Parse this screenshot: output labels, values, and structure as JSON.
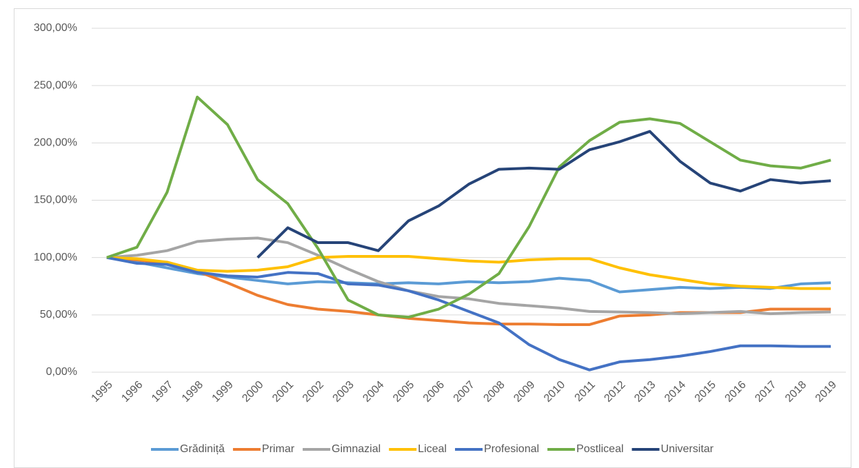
{
  "chart_data": {
    "type": "line",
    "categories": [
      "1995",
      "1996",
      "1997",
      "1998",
      "1999",
      "2000",
      "2001",
      "2002",
      "2003",
      "2004",
      "2005",
      "2006",
      "2007",
      "2008",
      "2009",
      "2010",
      "2011",
      "2012",
      "2013",
      "2014",
      "2015",
      "2016",
      "2017",
      "2018",
      "2019"
    ],
    "series": [
      {
        "name": "Grădiniță",
        "color": "#5b9bd5",
        "values": [
          100,
          96,
          91,
          86,
          83,
          80,
          77,
          79,
          78,
          77,
          78,
          77,
          79,
          78,
          79,
          82,
          80,
          70,
          72,
          74,
          73,
          74,
          73,
          77,
          78
        ]
      },
      {
        "name": "Primar",
        "color": "#ed7d31",
        "values": [
          100,
          98,
          95,
          88,
          78,
          67,
          59,
          55,
          53,
          50,
          47,
          45,
          43,
          42,
          42,
          41.5,
          41.5,
          49,
          50,
          52,
          52,
          52,
          55,
          55,
          55
        ]
      },
      {
        "name": "Gimnazial",
        "color": "#a5a5a5",
        "values": [
          100,
          102,
          106,
          114,
          116,
          117,
          113,
          102,
          90,
          79,
          71,
          66,
          64,
          60,
          58,
          56,
          53,
          52.5,
          52,
          51,
          52,
          53,
          51,
          52,
          52.5
        ]
      },
      {
        "name": "Liceal",
        "color": "#ffc000",
        "values": [
          100,
          99,
          96,
          89,
          88,
          89,
          92,
          100,
          101,
          101,
          101,
          99,
          97,
          96,
          98,
          99,
          99,
          91,
          85,
          81,
          77,
          75,
          74,
          73,
          73
        ]
      },
      {
        "name": "Profesional",
        "color": "#4472c4",
        "values": [
          100,
          95,
          94,
          87,
          84,
          83,
          87,
          86,
          77,
          76,
          71,
          63,
          53,
          43,
          24,
          11,
          2,
          9,
          11,
          14,
          18,
          23,
          23,
          22.5,
          22.5
        ]
      },
      {
        "name": "Postliceal",
        "color": "#70ad47",
        "values": [
          100,
          109,
          157,
          240,
          216,
          168,
          147,
          108,
          63,
          50,
          48,
          55,
          68,
          86,
          127,
          179,
          202,
          218,
          221,
          217,
          201,
          185,
          180,
          178,
          185
        ]
      },
      {
        "name": "Universitar",
        "color": "#264478",
        "values": [
          null,
          null,
          null,
          null,
          null,
          100,
          126,
          113,
          113,
          106,
          132,
          145,
          164,
          177,
          178,
          177,
          194,
          201,
          210,
          184,
          165,
          158,
          168,
          165,
          167
        ]
      }
    ],
    "ylim": [
      0,
      300
    ],
    "yticks": [
      {
        "value": 0,
        "label": "0,00%"
      },
      {
        "value": 50,
        "label": "50,00%"
      },
      {
        "value": 100,
        "label": "100,00%"
      },
      {
        "value": 150,
        "label": "150,00%"
      },
      {
        "value": 200,
        "label": "200,00%"
      },
      {
        "value": 250,
        "label": "250,00%"
      },
      {
        "value": 300,
        "label": "300,00%"
      }
    ],
    "grid": true,
    "legend": "bottom"
  }
}
